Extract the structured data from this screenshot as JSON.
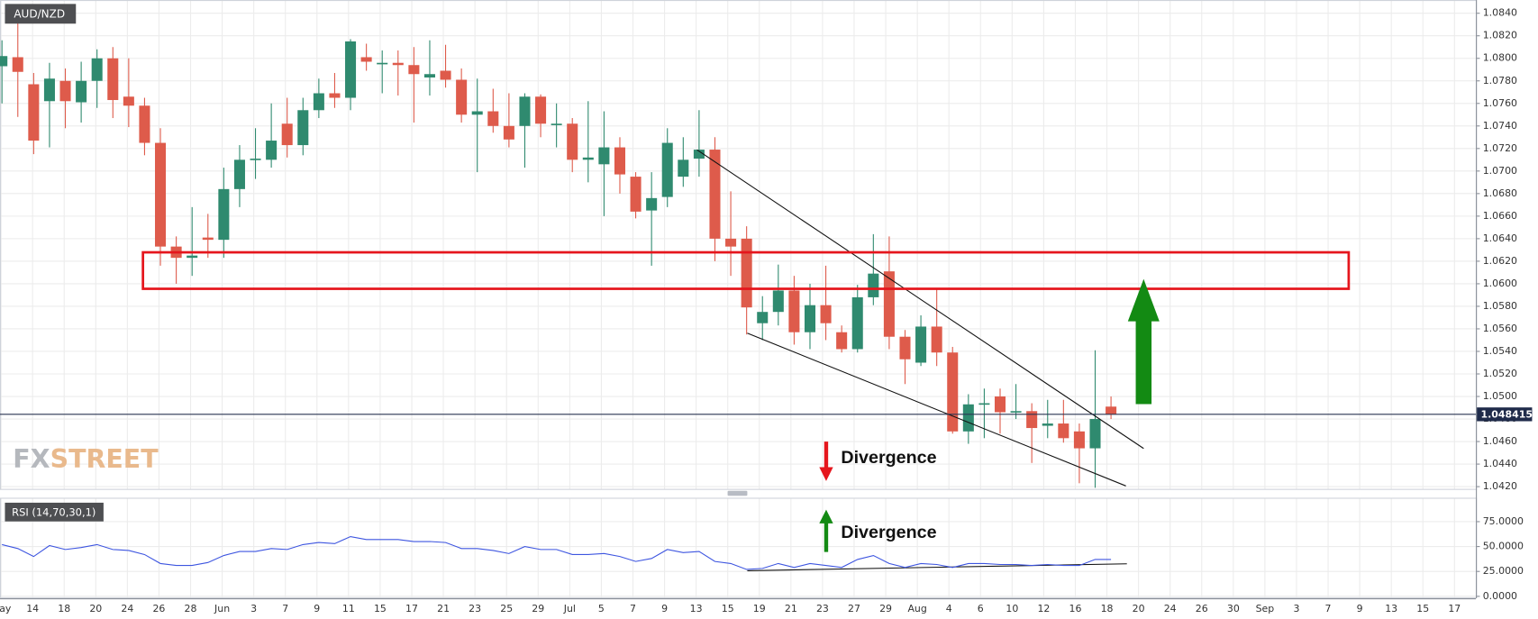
{
  "chart_data": {
    "type": "candlestick",
    "title": "AUD/NZD",
    "up_color": "#2f8a6f",
    "down_color": "#de5b4b",
    "x_labels": [
      "May",
      "14",
      "18",
      "20",
      "24",
      "26",
      "28",
      "Jun",
      "3",
      "7",
      "9",
      "11",
      "15",
      "17",
      "21",
      "23",
      "25",
      "29",
      "Jul",
      "5",
      "7",
      "9",
      "13",
      "15",
      "19",
      "21",
      "23",
      "27",
      "29",
      "Aug",
      "4",
      "6",
      "10",
      "12",
      "16",
      "18",
      "20",
      "24",
      "26",
      "30",
      "Sep",
      "3",
      "7",
      "9",
      "13",
      "15",
      "17"
    ],
    "ylim": [
      1.0418,
      1.085
    ],
    "yticks": [
      {
        "value": 1.084,
        "label": "1.0840"
      },
      {
        "value": 1.082,
        "label": "1.0820"
      },
      {
        "value": 1.08,
        "label": "1.0800"
      },
      {
        "value": 1.078,
        "label": "1.0780"
      },
      {
        "value": 1.076,
        "label": "1.0760"
      },
      {
        "value": 1.074,
        "label": "1.0740"
      },
      {
        "value": 1.072,
        "label": "1.0720"
      },
      {
        "value": 1.07,
        "label": "1.0700"
      },
      {
        "value": 1.068,
        "label": "1.0680"
      },
      {
        "value": 1.066,
        "label": "1.0660"
      },
      {
        "value": 1.064,
        "label": "1.0640"
      },
      {
        "value": 1.062,
        "label": "1.0620"
      },
      {
        "value": 1.06,
        "label": "1.0600"
      },
      {
        "value": 1.058,
        "label": "1.0580"
      },
      {
        "value": 1.056,
        "label": "1.0560"
      },
      {
        "value": 1.054,
        "label": "1.0540"
      },
      {
        "value": 1.052,
        "label": "1.0520"
      },
      {
        "value": 1.05,
        "label": "1.0500"
      },
      {
        "value": 1.048,
        "label": "1.0480"
      },
      {
        "value": 1.046,
        "label": "1.0460"
      },
      {
        "value": 1.044,
        "label": "1.0440"
      },
      {
        "value": 1.042,
        "label": "1.0420"
      }
    ],
    "grid": true,
    "last_price": 1.048415,
    "open": [
      1.0793,
      1.0801,
      1.0777,
      1.0762,
      1.078,
      1.0761,
      1.078,
      1.08,
      1.0766,
      1.0758,
      1.0725,
      1.0633,
      1.0623,
      1.0641,
      1.0639,
      1.0684,
      1.071,
      1.071,
      1.0742,
      1.0723,
      1.0754,
      1.0769,
      1.0765,
      1.0801,
      1.0796,
      1.0796,
      1.0794,
      1.0783,
      1.0789,
      1.0781,
      1.075,
      1.0753,
      1.074,
      1.074,
      1.0766,
      1.0742,
      1.0742,
      1.071,
      1.0706,
      1.0721,
      1.0695,
      1.0665,
      1.0677,
      1.0695,
      1.0711,
      1.0719,
      1.064,
      1.064,
      1.0565,
      1.0575,
      1.0594,
      1.0557,
      1.0581,
      1.0557,
      1.0542,
      1.0588,
      1.0611,
      1.0553,
      1.053,
      1.0562,
      1.0539,
      1.0469,
      1.0493,
      1.05,
      1.0486,
      1.0487,
      1.0474,
      1.0476,
      1.0469,
      1.0454,
      1.0491
    ],
    "high": [
      1.0816,
      1.0845,
      1.0787,
      1.0796,
      1.0791,
      1.0797,
      1.0808,
      1.081,
      1.08,
      1.0765,
      1.0738,
      1.0642,
      1.0668,
      1.0662,
      1.0703,
      1.0723,
      1.0738,
      1.076,
      1.0765,
      1.0765,
      1.0782,
      1.0787,
      1.0817,
      1.0813,
      1.0807,
      1.0807,
      1.081,
      1.0816,
      1.0812,
      1.0791,
      1.0782,
      1.0773,
      1.0769,
      1.0769,
      1.0768,
      1.076,
      1.0747,
      1.0762,
      1.0753,
      1.073,
      1.0699,
      1.0699,
      1.0738,
      1.073,
      1.0754,
      1.073,
      1.0682,
      1.0651,
      1.0589,
      1.0617,
      1.0607,
      1.06,
      1.0616,
      1.0563,
      1.0599,
      1.0644,
      1.0642,
      1.0559,
      1.0572,
      1.0595,
      1.0544,
      1.0502,
      1.0507,
      1.0507,
      1.0511,
      1.0494,
      1.0497,
      1.0497,
      1.0476,
      1.0541,
      1.05
    ],
    "low": [
      1.076,
      1.0748,
      1.0715,
      1.0721,
      1.0738,
      1.0743,
      1.0756,
      1.0747,
      1.0739,
      1.0714,
      1.0616,
      1.06,
      1.0607,
      1.0623,
      1.0623,
      1.0668,
      1.0693,
      1.0703,
      1.0712,
      1.0714,
      1.0747,
      1.0756,
      1.0754,
      1.0789,
      1.0769,
      1.0767,
      1.0743,
      1.0767,
      1.0774,
      1.0743,
      1.0699,
      1.0734,
      1.0721,
      1.0703,
      1.073,
      1.0721,
      1.0699,
      1.069,
      1.066,
      1.068,
      1.0658,
      1.0616,
      1.0668,
      1.0686,
      1.0695,
      1.062,
      1.0607,
      1.0555,
      1.055,
      1.0563,
      1.0546,
      1.0542,
      1.055,
      1.0539,
      1.0539,
      1.0581,
      1.0542,
      1.0511,
      1.0527,
      1.0527,
      1.0467,
      1.0458,
      1.0463,
      1.0467,
      1.048,
      1.0441,
      1.0463,
      1.0459,
      1.0423,
      1.0419,
      1.048
    ],
    "close": [
      1.0802,
      1.0788,
      1.0727,
      1.0782,
      1.0762,
      1.078,
      1.08,
      1.0763,
      1.0758,
      1.0725,
      1.0633,
      1.0623,
      1.0625,
      1.0639,
      1.0684,
      1.071,
      1.0711,
      1.0727,
      1.0723,
      1.0754,
      1.0769,
      1.0765,
      1.0815,
      1.0797,
      1.0796,
      1.0794,
      1.0786,
      1.0786,
      1.0781,
      1.075,
      1.0753,
      1.074,
      1.0728,
      1.0766,
      1.0742,
      1.0742,
      1.071,
      1.0712,
      1.0721,
      1.0697,
      1.0664,
      1.0676,
      1.0725,
      1.071,
      1.0719,
      1.064,
      1.0633,
      1.0579,
      1.0575,
      1.0594,
      1.0557,
      1.0581,
      1.0565,
      1.0542,
      1.0588,
      1.0609,
      1.0553,
      1.0533,
      1.0562,
      1.0539,
      1.0469,
      1.0493,
      1.0494,
      1.0486,
      1.0487,
      1.0472,
      1.0476,
      1.0463,
      1.0454,
      1.048,
      1.0484
    ],
    "annotations": [
      "Divergence",
      "Divergence"
    ],
    "logo": {
      "prefix": "FX",
      "suffix": "STREET"
    },
    "indicator": {
      "type": "line",
      "title": "RSI (14,70,30,1)",
      "color": "#3d55e0",
      "ylim": [
        0,
        98
      ],
      "yticks": [
        {
          "value": 75,
          "label": "75.0000"
        },
        {
          "value": 50,
          "label": "50.0000"
        },
        {
          "value": 25,
          "label": "25.0000"
        },
        {
          "value": 0,
          "label": "0.0000"
        }
      ],
      "values": [
        52,
        48,
        40,
        51,
        47,
        49,
        52,
        47,
        46,
        42,
        33,
        31,
        31,
        34,
        41,
        45,
        45,
        48,
        47,
        52,
        54,
        53,
        60,
        57,
        57,
        57,
        55,
        55,
        54,
        48,
        48,
        46,
        43,
        50,
        47,
        47,
        42,
        42,
        43,
        40,
        35,
        38,
        47,
        44,
        45,
        35,
        33,
        27,
        28,
        33,
        29,
        33,
        31,
        29,
        37,
        41,
        33,
        29,
        33,
        32,
        29,
        33,
        33,
        32,
        32,
        31,
        32,
        31,
        31,
        37,
        37
      ]
    }
  }
}
